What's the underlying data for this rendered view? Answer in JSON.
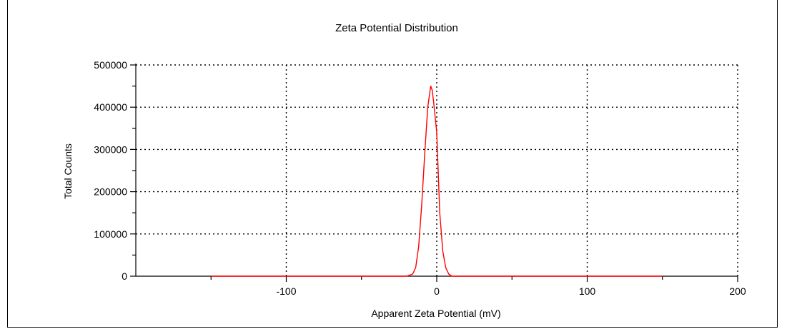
{
  "chart_data": {
    "type": "line",
    "title": "Zeta Potential Distribution",
    "xlabel": "Apparent Zeta Potential (mV)",
    "ylabel": "Total Counts",
    "xlim": [
      -200,
      200
    ],
    "ylim": [
      0,
      500000
    ],
    "x_ticks": [
      -100,
      0,
      100,
      200
    ],
    "x_tick_labels": [
      "-100",
      "0",
      "100",
      "200"
    ],
    "y_ticks": [
      0,
      100000,
      200000,
      300000,
      400000,
      500000
    ],
    "y_tick_labels": [
      "0",
      "100000",
      "200000",
      "300000",
      "400000",
      "500000"
    ],
    "grid": true,
    "legend": "none",
    "series": [
      {
        "color": "#ff0000",
        "x": [
          -150,
          -20,
          -16,
          -14,
          -12,
          -10,
          -8,
          -6,
          -4,
          -3,
          -2,
          0,
          2,
          4,
          6,
          8,
          10,
          12,
          150
        ],
        "y": [
          0,
          0,
          5000,
          20000,
          70000,
          170000,
          290000,
          400000,
          450000,
          440000,
          410000,
          340000,
          150000,
          60000,
          20000,
          5000,
          0,
          0,
          0
        ]
      }
    ]
  }
}
